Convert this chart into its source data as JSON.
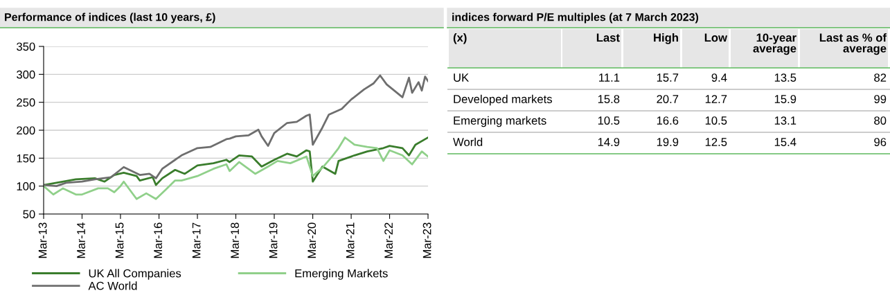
{
  "chart_data": [
    {
      "type": "line",
      "title": "Performance of indices (last 10 years, £)",
      "ylim": [
        50,
        350
      ],
      "yticks": [
        50,
        100,
        150,
        200,
        250,
        300,
        350
      ],
      "xlim": [
        "2013-03",
        "2023-03"
      ],
      "xticks": [
        {
          "value": "2013-03",
          "label": "Mar-13"
        },
        {
          "value": "2014-03",
          "label": "Mar-14"
        },
        {
          "value": "2015-03",
          "label": "Mar-15"
        },
        {
          "value": "2016-03",
          "label": "Mar-16"
        },
        {
          "value": "2017-03",
          "label": "Mar-17"
        },
        {
          "value": "2018-03",
          "label": "Mar-18"
        },
        {
          "value": "2019-03",
          "label": "Mar-19"
        },
        {
          "value": "2020-03",
          "label": "Mar-20"
        },
        {
          "value": "2021-03",
          "label": "Mar-21"
        },
        {
          "value": "2022-03",
          "label": "Mar-22"
        },
        {
          "value": "2023-03",
          "label": "Mar-23"
        }
      ],
      "grid": "y",
      "legend": "bottom",
      "marker": "none",
      "line_style": "solid",
      "series": [
        {
          "name": "UK All Companies",
          "color": "#3a7d2c",
          "x": [
            "2013-03",
            "2013-07",
            "2014-01",
            "2014-07",
            "2014-10",
            "2015-01",
            "2015-04",
            "2015-08",
            "2015-09",
            "2016-01",
            "2016-02",
            "2016-04",
            "2016-08",
            "2016-11",
            "2017-03",
            "2017-08",
            "2017-12",
            "2018-01",
            "2018-03",
            "2018-04",
            "2018-08",
            "2018-11",
            "2019-03",
            "2019-07",
            "2019-10",
            "2020-01",
            "2020-02",
            "2020-03",
            "2020-06",
            "2020-10",
            "2020-11",
            "2021-04",
            "2021-08",
            "2022-01",
            "2022-03",
            "2022-07",
            "2022-09",
            "2022-11",
            "2023-03"
          ],
          "values": [
            102,
            106,
            112,
            114,
            108,
            120,
            124,
            118,
            110,
            116,
            102,
            114,
            129,
            122,
            137,
            141,
            147,
            143,
            151,
            155,
            153,
            135,
            147,
            158,
            153,
            164,
            162,
            108,
            135,
            122,
            145,
            155,
            162,
            168,
            172,
            168,
            155,
            174,
            187
          ]
        },
        {
          "name": "AC World",
          "color": "#6e6e6e",
          "x": [
            "2013-03",
            "2013-07",
            "2013-10",
            "2014-03",
            "2014-07",
            "2014-12",
            "2015-04",
            "2015-09",
            "2015-12",
            "2016-02",
            "2016-04",
            "2016-08",
            "2016-10",
            "2017-03",
            "2017-07",
            "2017-12",
            "2018-01",
            "2018-03",
            "2018-07",
            "2018-10",
            "2018-11",
            "2019-01",
            "2019-03",
            "2019-07",
            "2019-10",
            "2020-01",
            "2020-02",
            "2020-03",
            "2020-06",
            "2020-08",
            "2020-12",
            "2021-03",
            "2021-07",
            "2021-10",
            "2021-12",
            "2022-02",
            "2022-04",
            "2022-07",
            "2022-09",
            "2022-10",
            "2022-12",
            "2023-01",
            "2023-02",
            "2023-03"
          ],
          "values": [
            102,
            100,
            106,
            108,
            112,
            116,
            134,
            120,
            122,
            114,
            131,
            147,
            155,
            168,
            170,
            184,
            185,
            189,
            191,
            201,
            189,
            172,
            195,
            213,
            215,
            226,
            228,
            174,
            205,
            228,
            238,
            255,
            273,
            284,
            298,
            282,
            273,
            259,
            294,
            267,
            286,
            271,
            296,
            288
          ]
        },
        {
          "name": "Emerging Markets",
          "color": "#90d08a",
          "x": [
            "2013-03",
            "2013-06",
            "2013-09",
            "2014-01",
            "2014-03",
            "2014-08",
            "2014-11",
            "2015-01",
            "2015-03",
            "2015-04",
            "2015-08",
            "2015-11",
            "2016-02",
            "2016-05",
            "2016-08",
            "2016-10",
            "2017-03",
            "2017-08",
            "2017-12",
            "2018-01",
            "2018-04",
            "2018-09",
            "2019-01",
            "2019-04",
            "2019-08",
            "2020-01",
            "2020-03",
            "2020-06",
            "2020-09",
            "2020-11",
            "2021-01",
            "2021-04",
            "2021-08",
            "2021-11",
            "2022-01",
            "2022-03",
            "2022-07",
            "2022-10",
            "2023-01",
            "2023-03"
          ],
          "values": [
            100,
            85,
            96,
            85,
            85,
            96,
            96,
            89,
            100,
            108,
            77,
            87,
            77,
            93,
            110,
            110,
            118,
            131,
            139,
            127,
            143,
            122,
            135,
            145,
            141,
            153,
            118,
            133,
            153,
            168,
            187,
            174,
            170,
            168,
            145,
            164,
            155,
            139,
            162,
            153
          ]
        }
      ]
    },
    {
      "type": "other",
      "title": "indices forward P/E multiples (at 7 March 2023)",
      "annotations": [
        "(x)"
      ],
      "data_labels": true,
      "categories": [
        "UK",
        "Developed markets",
        "Emerging markets",
        "World"
      ],
      "series": [
        {
          "name": "Last",
          "values": [
            11.1,
            15.8,
            10.5,
            14.9
          ]
        },
        {
          "name": "High",
          "values": [
            15.7,
            20.7,
            16.6,
            19.9
          ]
        },
        {
          "name": "Low",
          "values": [
            9.4,
            12.7,
            10.5,
            12.5
          ]
        },
        {
          "name": "10-year\naverage",
          "values": [
            13.5,
            15.9,
            13.1,
            15.4
          ]
        },
        {
          "name": "Last as % of\naverage",
          "values": [
            82,
            99,
            80,
            96
          ]
        }
      ]
    }
  ]
}
